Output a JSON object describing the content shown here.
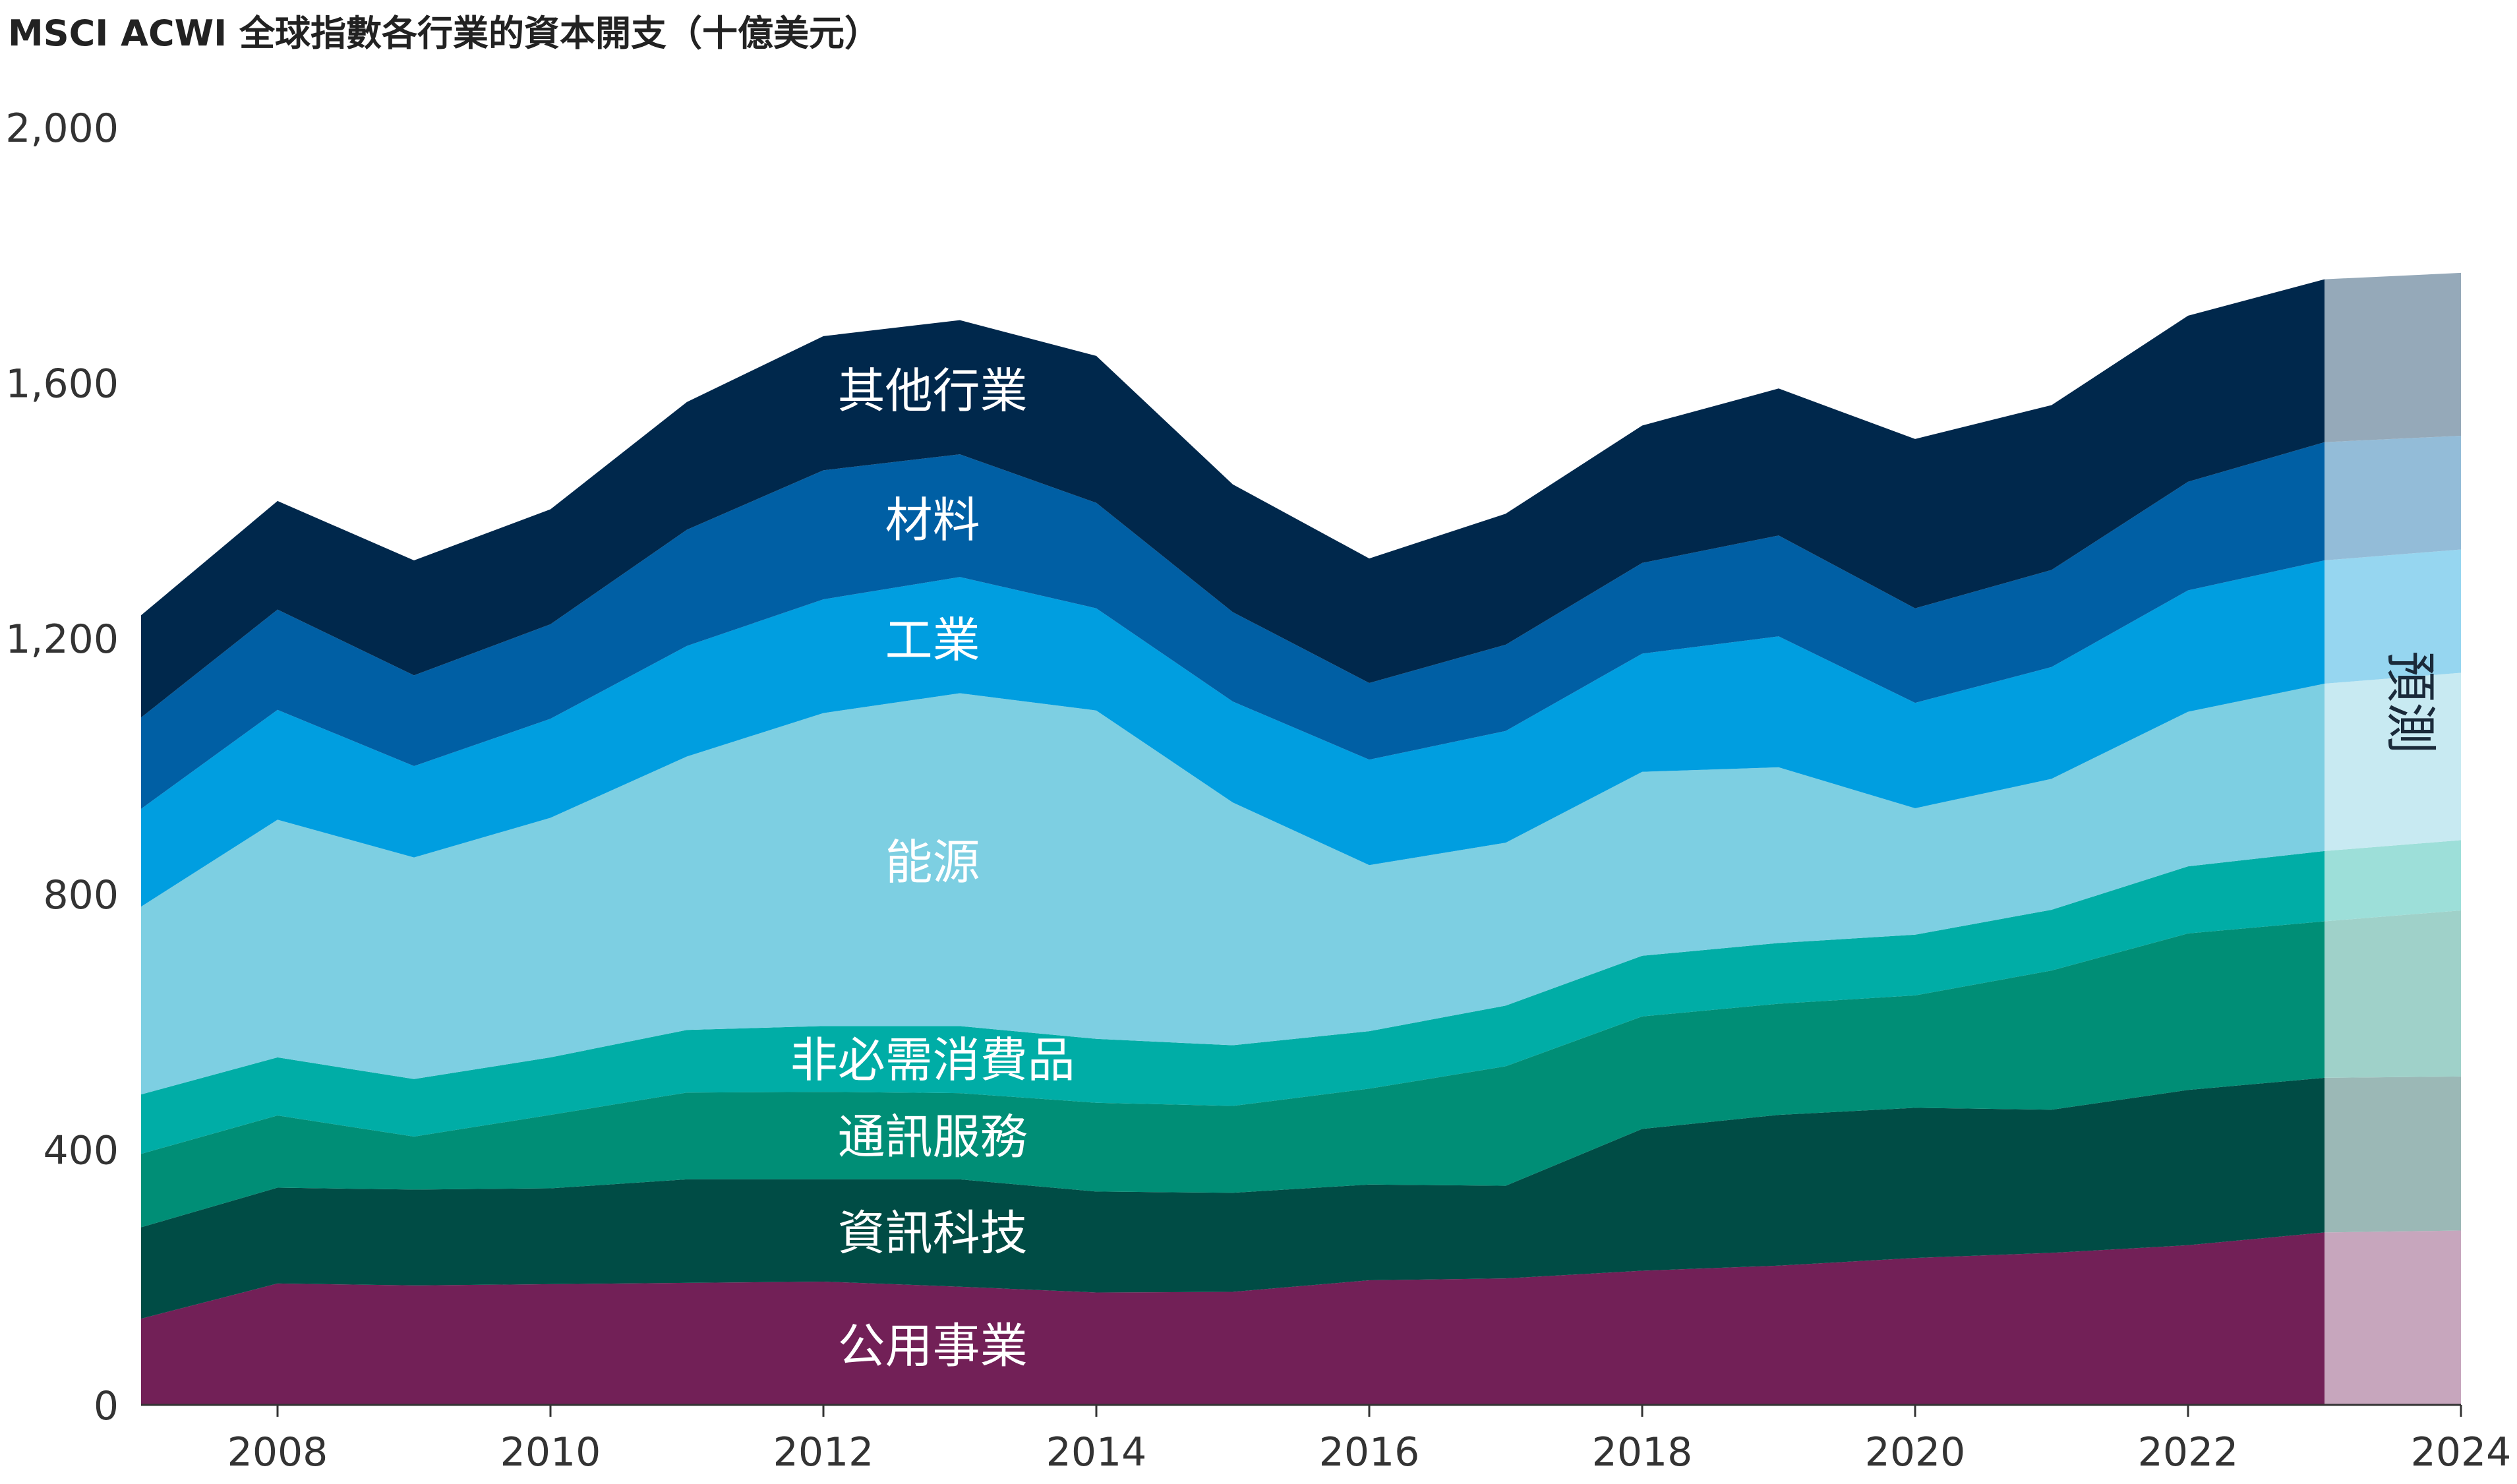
{
  "chart_data": {
    "type": "area",
    "stacked": true,
    "title": "MSCI ACWI 全球指數各行業的資本開支（十億美元）",
    "xlabel": "",
    "ylabel": "",
    "ylim": [
      0,
      2000
    ],
    "xlim": [
      2007,
      2024
    ],
    "y_ticks": [
      "0",
      "400",
      "800",
      "1,200",
      "1,600",
      "2,000"
    ],
    "x_ticks": [
      "2008",
      "2010",
      "2012",
      "2014",
      "2016",
      "2018",
      "2020",
      "2022",
      "2024"
    ],
    "x": [
      2007,
      2008,
      2009,
      2010,
      2011,
      2012,
      2013,
      2014,
      2015,
      2016,
      2017,
      2018,
      2019,
      2020,
      2021,
      2022,
      2023,
      2024
    ],
    "forecast": {
      "label": "預測",
      "from": 2023,
      "to": 2024
    },
    "grid": false,
    "legend": "none (labels inside areas)",
    "series": [
      {
        "name": "公用事業",
        "color": "#722057",
        "forecast_color": "#c7a6bd",
        "values": [
          135,
          190,
          187,
          189,
          191,
          193,
          185,
          176,
          177,
          195,
          198,
          210,
          218,
          230,
          238,
          250,
          270,
          273
        ]
      },
      {
        "name": "資訊科技",
        "color": "#004c45",
        "forecast_color": "#9bb8b6",
        "values": [
          143,
          150,
          150,
          150,
          162,
          160,
          168,
          158,
          155,
          150,
          145,
          222,
          236,
          235,
          224,
          243,
          242,
          241
        ]
      },
      {
        "name": "通訊服務",
        "color": "#008e76",
        "forecast_color": "#9fd1c9",
        "values": [
          115,
          113,
          83,
          115,
          136,
          137,
          135,
          139,
          136,
          150,
          187,
          176,
          174,
          176,
          218,
          245,
          245,
          260
        ]
      },
      {
        "name": "非必需消費品",
        "color": "#00ada6",
        "forecast_color": "#9ddfd9",
        "values": [
          93,
          91,
          90,
          90,
          98,
          103,
          105,
          100,
          95,
          90,
          95,
          95,
          95,
          95,
          95,
          105,
          110,
          110
        ]
      },
      {
        "name": "能源",
        "color": "#7dcfe2",
        "forecast_color": "#c8eaf2",
        "values": [
          294,
          372,
          347,
          375,
          428,
          490,
          521,
          514,
          380,
          260,
          255,
          288,
          275,
          198,
          205,
          242,
          262,
          262
        ]
      },
      {
        "name": "工業",
        "color": "#009ee0",
        "forecast_color": "#96d6f0",
        "values": [
          153,
          172,
          143,
          155,
          173,
          178,
          182,
          160,
          158,
          165,
          175,
          185,
          205,
          165,
          175,
          190,
          193,
          193
        ]
      },
      {
        "name": "材料",
        "color": "#005fa4",
        "forecast_color": "#93bcd8",
        "values": [
          143,
          157,
          142,
          148,
          182,
          202,
          192,
          165,
          140,
          120,
          135,
          142,
          158,
          148,
          152,
          170,
          185,
          178
        ]
      },
      {
        "name": "其他行業",
        "color": "#00284c",
        "forecast_color": "#95a9b9",
        "values": [
          160,
          170,
          180,
          180,
          200,
          210,
          210,
          230,
          200,
          195,
          205,
          215,
          230,
          265,
          258,
          260,
          255,
          255
        ]
      }
    ]
  }
}
